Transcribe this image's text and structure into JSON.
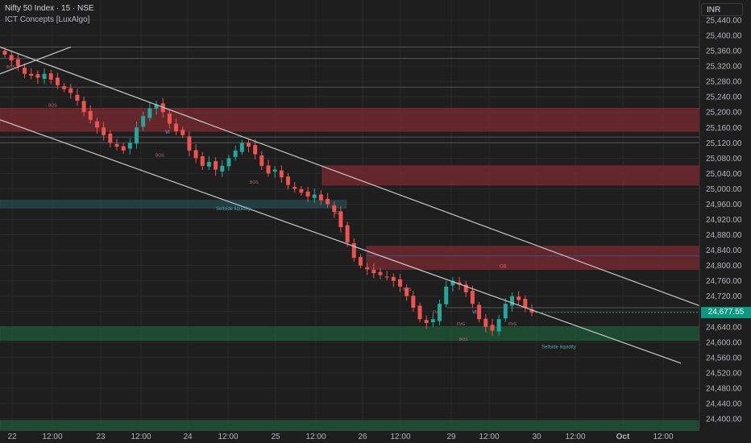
{
  "header": {
    "title": "Nifty 50 Index · 15 · NSE",
    "indicator": "ICT Concepts [LuxAlgo]",
    "currency": "INR"
  },
  "colors": {
    "background": "#1e1e1e",
    "grid": "#2b2b2b",
    "up": "#26a69a",
    "down": "#ef5350",
    "supply_zone": "#7a2a30",
    "demand_zone": "#1f5a3a",
    "fvg_zone": "#244a4d",
    "trendline": "#c8c8c8",
    "ob_line": "#3f4fa0",
    "label_red": "#e05a5a",
    "label_teal": "#4ea8b0"
  },
  "chart_data": {
    "type": "candlestick",
    "title": "Nifty 50 Index · 15 · NSE",
    "ylim": [
      24360,
      25480
    ],
    "y_ticks": [
      "25,440.00",
      "25,400.00",
      "25,360.00",
      "25,320.00",
      "25,280.00",
      "25,240.00",
      "25,200.00",
      "25,160.00",
      "25,120.00",
      "25,080.00",
      "25,040.00",
      "25,000.00",
      "24,960.00",
      "24,920.00",
      "24,880.00",
      "24,840.00",
      "24,800.00",
      "24,760.00",
      "24,720.00",
      "24,680.00",
      "24,640.00",
      "24,600.00",
      "24,560.00",
      "24,520.00",
      "24,480.00",
      "24,440.00",
      "24,400.00"
    ],
    "x_ticks": [
      "22",
      "12:00",
      "23",
      "12:00",
      "24",
      "12:00",
      "25",
      "12:00",
      "26",
      "12:00",
      "29",
      "12:00",
      "30",
      "12:00",
      "Oct",
      "12:00"
    ],
    "last_price": "24,677.55",
    "close_series": [
      25350,
      25335,
      25320,
      25300,
      25295,
      25290,
      25300,
      25285,
      25270,
      25260,
      25250,
      25230,
      25200,
      25180,
      25160,
      25140,
      25120,
      25110,
      25100,
      25120,
      25160,
      25190,
      25210,
      25220,
      25200,
      25170,
      25150,
      25140,
      25100,
      25080,
      25060,
      25070,
      25050,
      25060,
      25080,
      25100,
      25120,
      25110,
      25090,
      25060,
      25040,
      25050,
      25030,
      25010,
      25000,
      24990,
      24980,
      24985,
      24970,
      24960,
      24940,
      24900,
      24860,
      24820,
      24800,
      24790,
      24780,
      24775,
      24770,
      24760,
      24745,
      24720,
      24690,
      24660,
      24650,
      24660,
      24700,
      24745,
      24760,
      24750,
      24730,
      24700,
      24660,
      24640,
      24630,
      24660,
      24700,
      24720,
      24710,
      24690,
      24677.55
    ],
    "zones": [
      {
        "kind": "supply",
        "from": 25150,
        "to": 25210
      },
      {
        "kind": "supply",
        "from": 25010,
        "to": 25060
      },
      {
        "kind": "supply",
        "from": 24790,
        "to": 24850
      },
      {
        "kind": "demand",
        "from": 24605,
        "to": 24640
      },
      {
        "kind": "demand",
        "from": 24370,
        "to": 24395
      },
      {
        "kind": "fvg",
        "from": 24950,
        "to": 24970
      }
    ],
    "horizontal_levels": [
      25370,
      25340,
      25265,
      25135,
      25120,
      24825,
      24690
    ],
    "annotations": [
      {
        "text": "Sellside liquidity",
        "price": 24950
      },
      {
        "text": "Sellside liquidity",
        "price": 24590
      },
      {
        "text": "VI",
        "price": 25150
      },
      {
        "text": "VI",
        "price": 24680
      },
      {
        "text": "OB",
        "price": 24800
      },
      {
        "text": "BOS",
        "price": 25320
      },
      {
        "text": "BOS",
        "price": 25220
      },
      {
        "text": "BOS",
        "price": 25090
      },
      {
        "text": "BOS",
        "price": 25020
      },
      {
        "text": "BOS",
        "price": 24940
      },
      {
        "text": "BOS",
        "price": 24740
      },
      {
        "text": "BOS",
        "price": 24610
      },
      {
        "text": "FVG",
        "price": 24680
      },
      {
        "text": "FVG",
        "price": 24650
      },
      {
        "text": "FVG",
        "price": 24650
      }
    ]
  }
}
